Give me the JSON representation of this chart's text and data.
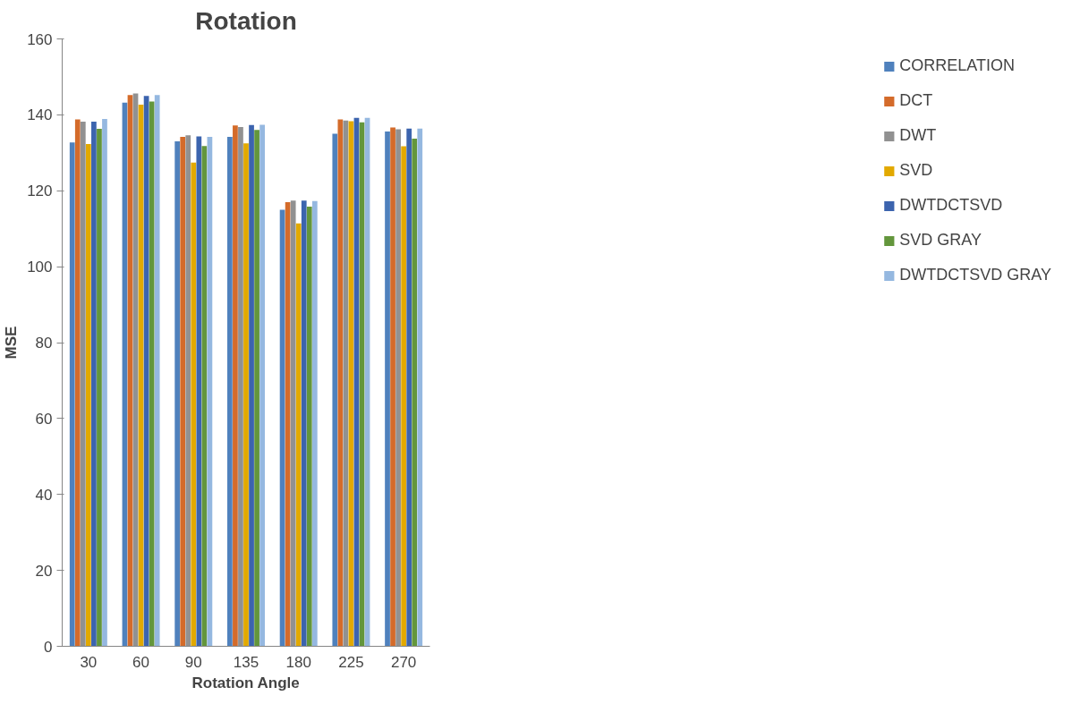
{
  "chart_data": {
    "type": "bar",
    "title": "Rotation",
    "xlabel": "Rotation Angle",
    "ylabel": "MSE",
    "categories": [
      "30",
      "60",
      "90",
      "135",
      "180",
      "225",
      "270"
    ],
    "series": [
      {
        "name": "CORRELATION",
        "color": "#4f81bd",
        "values": [
          132.7,
          143.2,
          133.0,
          134.2,
          115.0,
          135.0,
          135.6
        ]
      },
      {
        "name": "DCT",
        "color": "#d46b2a",
        "values": [
          138.8,
          145.2,
          134.2,
          137.2,
          117.0,
          138.8,
          136.7
        ]
      },
      {
        "name": "DWT",
        "color": "#919191",
        "values": [
          138.2,
          145.6,
          134.6,
          136.8,
          117.4,
          138.5,
          136.2
        ]
      },
      {
        "name": "SVD",
        "color": "#e2a900",
        "values": [
          132.3,
          142.7,
          127.4,
          132.5,
          111.4,
          138.3,
          131.7
        ]
      },
      {
        "name": "DWTDCTSVD",
        "color": "#3c64ae",
        "values": [
          138.2,
          145.0,
          134.3,
          137.3,
          117.4,
          139.2,
          136.4
        ]
      },
      {
        "name": "SVD GRAY",
        "color": "#63963c",
        "values": [
          136.3,
          143.5,
          131.8,
          136.0,
          115.8,
          138.0,
          133.7
        ]
      },
      {
        "name": "DWTDCTSVD GRAY",
        "color": "#95b8e0",
        "values": [
          138.9,
          145.2,
          134.2,
          137.4,
          117.3,
          139.2,
          136.4
        ]
      }
    ],
    "ylim": [
      0,
      160
    ],
    "yticks": [
      0,
      20,
      40,
      60,
      80,
      100,
      120,
      140,
      160
    ],
    "grid": false,
    "legend": "right"
  }
}
